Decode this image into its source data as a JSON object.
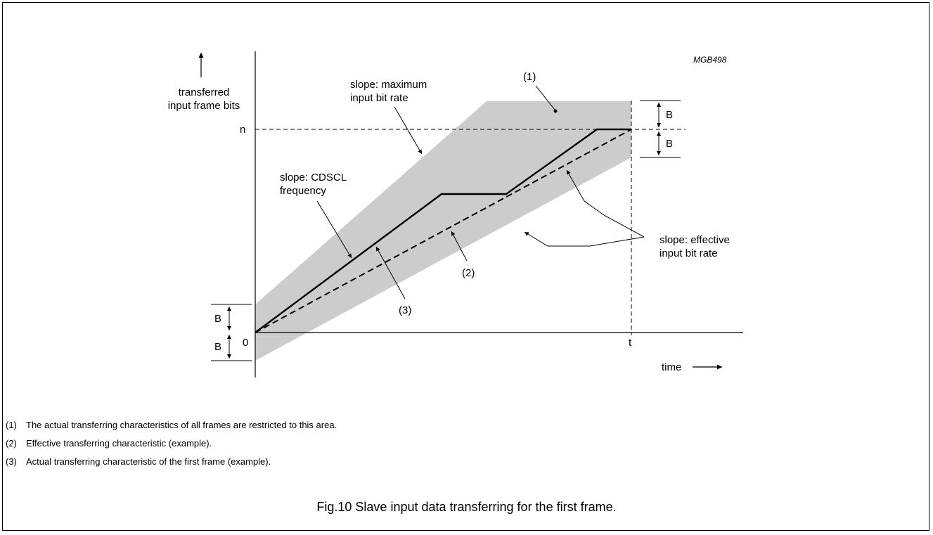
{
  "figure_code": "MGB498",
  "y_axis_label": [
    "transferred",
    "input frame bits"
  ],
  "x_axis_label": "time",
  "labels": {
    "n": "n",
    "t": "t",
    "origin": "0",
    "b": "B",
    "region": "(1)",
    "effective_curve": "(2)",
    "actual_curve": "(3)"
  },
  "annotations": {
    "max_rate": [
      "slope: maximum",
      "input bit rate"
    ],
    "cdscl": [
      "slope: CDSCL",
      "frequency"
    ],
    "effective_rate": [
      "slope: effective",
      "input bit rate"
    ]
  },
  "notes": [
    {
      "num": "(1)",
      "text": "The actual transferring characteristics of all frames are restricted to this area."
    },
    {
      "num": "(2)",
      "text": "Effective transferring characteristic (example)."
    },
    {
      "num": "(3)",
      "text": "Actual transferring characteristic of the first frame (example)."
    }
  ],
  "caption": "Fig.10  Slave input data transferring for the first frame.",
  "colors": {
    "region_fill": "#cccccc",
    "line": "#000000"
  }
}
